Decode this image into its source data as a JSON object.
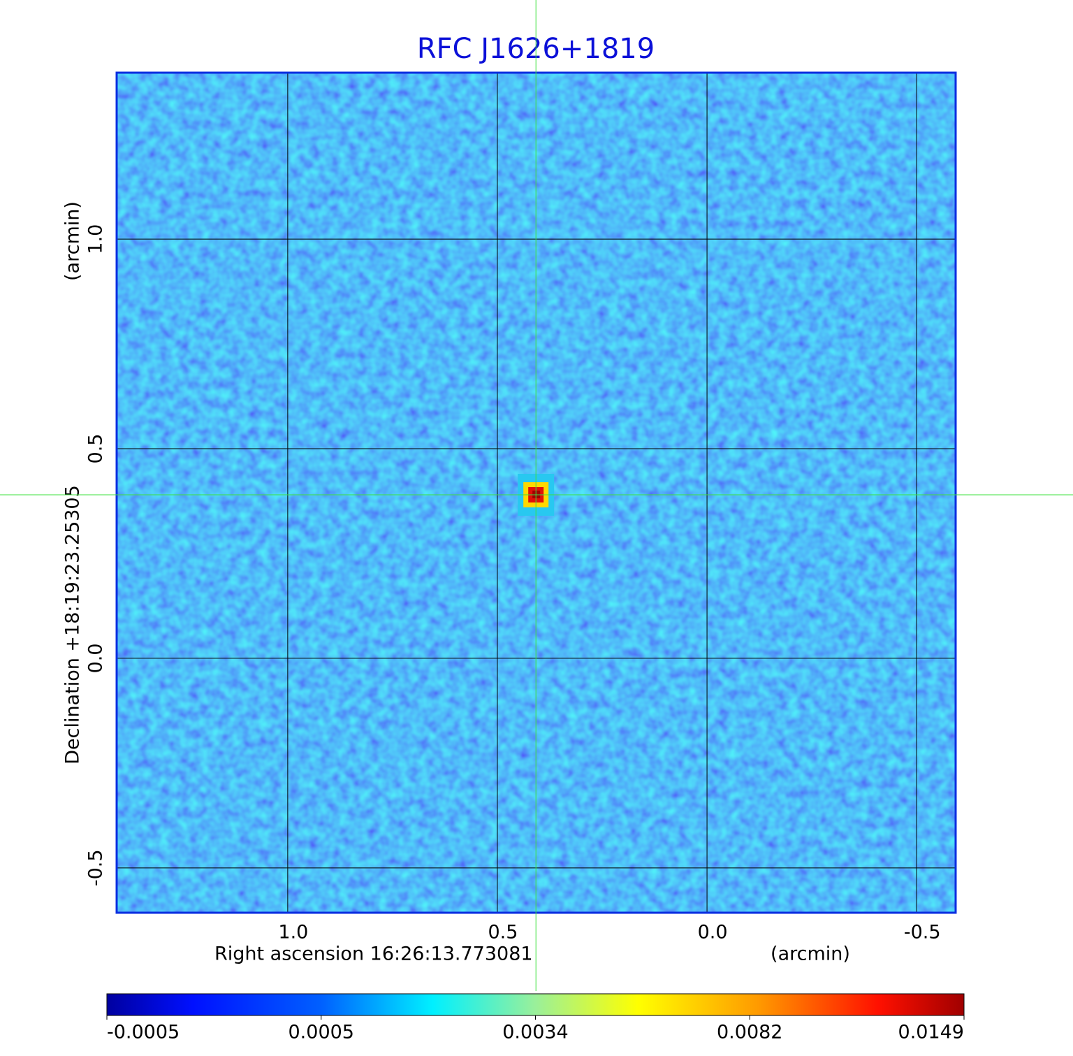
{
  "chart_data": {
    "type": "image",
    "title": "RFC J1626+1819",
    "x_label": "Right ascension  16:26:13.773081",
    "x_unit": "(arcmin)",
    "y_label": "Declination  +18:19:23.25305",
    "y_unit": "(arcmin)",
    "xlim": [
      1.408,
      -0.593
    ],
    "ylim": [
      -0.607,
      1.397
    ],
    "xticks": [
      {
        "value": 1,
        "label": "1.0"
      },
      0.5,
      {
        "value": 0,
        "label": "0.0"
      },
      -0.5
    ],
    "yticks": [
      -0.5,
      {
        "value": 0,
        "label": "0.0"
      },
      0.5,
      {
        "value": 1,
        "label": "1.0"
      }
    ],
    "grid": true,
    "source": {
      "x": 0.408,
      "y": 0.39
    },
    "colorbar_ticks": [
      -0.0005,
      0.0005,
      0.0034,
      0.0082,
      0.0149
    ]
  }
}
